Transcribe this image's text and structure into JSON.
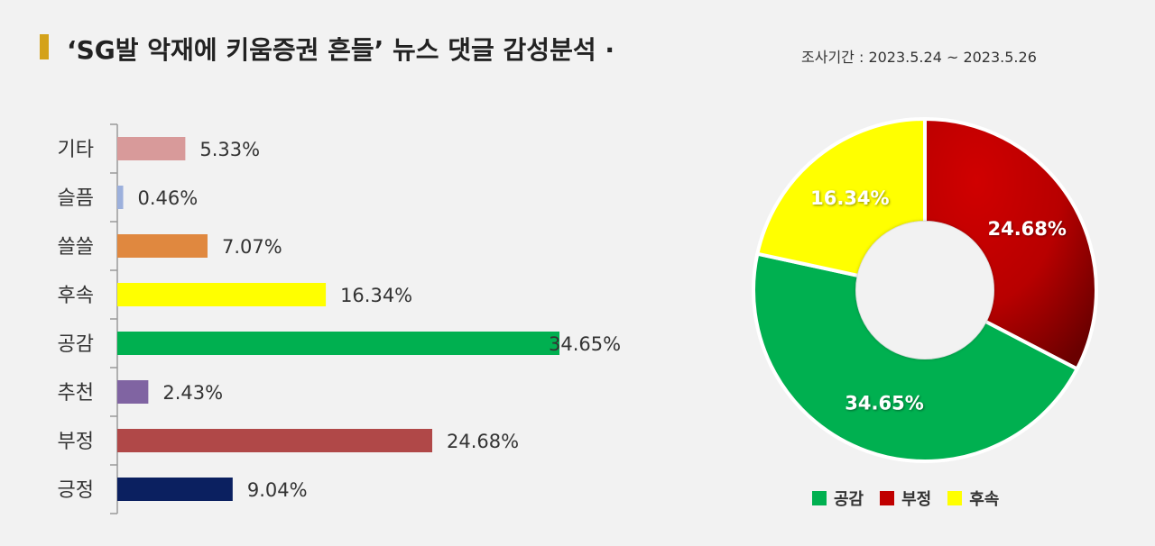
{
  "header": {
    "title": "‘SG발 악재에 키움증권 흔들’ 뉴스 댓글 감성분석 ·",
    "period": "조사기간 : 2023.5.24 ~ 2023.5.26"
  },
  "chart_data": [
    {
      "type": "bar",
      "orientation": "horizontal",
      "categories": [
        "기타",
        "슬픔",
        "쓸쓸",
        "후속",
        "공감",
        "추천",
        "부정",
        "긍정"
      ],
      "values": [
        5.33,
        0.46,
        7.07,
        16.34,
        34.65,
        2.43,
        24.68,
        9.04
      ],
      "data_labels": [
        "5.33%",
        "0.46%",
        "7.07%",
        "16.34%",
        "34.65%",
        "2.43%",
        "24.68%",
        "9.04%"
      ],
      "colors": [
        "#d89a9a",
        "#9cb0dc",
        "#e0883f",
        "#ffff00",
        "#00b050",
        "#8064a2",
        "#b04848",
        "#0b2060"
      ],
      "xlim": [
        0,
        40
      ]
    },
    {
      "type": "pie",
      "donut": true,
      "labels": [
        "공감",
        "부정",
        "후속"
      ],
      "values": [
        34.65,
        24.68,
        16.34
      ],
      "data_labels": [
        "34.65%",
        "24.68%",
        "16.34%"
      ],
      "colors": [
        "#00b050",
        "#c00000",
        "#ffff00"
      ],
      "legend_position": "bottom"
    }
  ]
}
